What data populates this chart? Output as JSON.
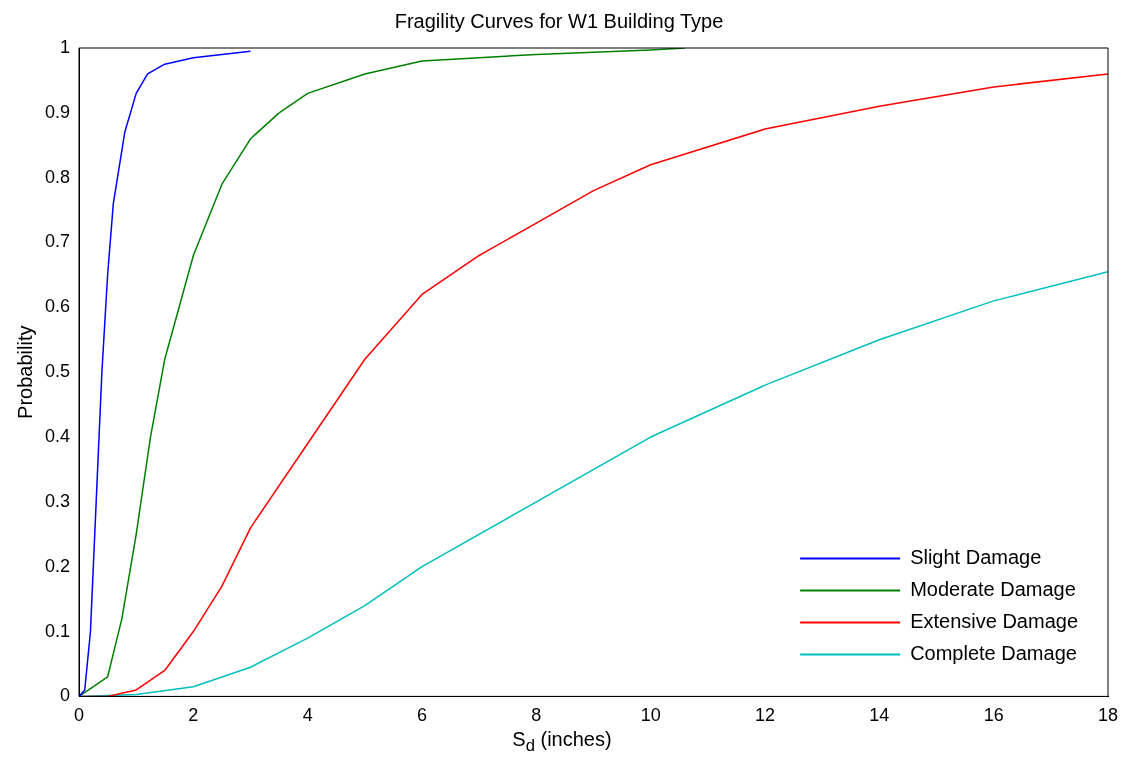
{
  "chart_data": {
    "type": "line",
    "title": "Fragility Curves for W1 Building Type",
    "xlabel": "S$_{d}$ (inches)",
    "ylabel": "Probability",
    "xlim": [
      0,
      18
    ],
    "xticks": [
      0,
      2,
      4,
      6,
      8,
      10,
      12,
      14,
      16,
      18
    ],
    "ylim": [
      0,
      1
    ],
    "yticks": [
      0,
      0.1,
      0.2,
      0.3,
      0.4,
      0.5,
      0.6,
      0.7,
      0.8,
      0.9,
      1
    ],
    "grid": false,
    "legend": "bottom right",
    "marker": "none",
    "line_style": "solid",
    "series": [
      {
        "name": "Slight Damage",
        "color": "#0000ff",
        "x": [
          0,
          0.1,
          0.2,
          0.3,
          0.4,
          0.5,
          0.6,
          0.8,
          1,
          1.2,
          1.5,
          2,
          2.5,
          3
        ],
        "values": [
          0,
          0.01,
          0.1,
          0.3,
          0.5,
          0.65,
          0.76,
          0.87,
          0.93,
          0.96,
          0.975,
          0.985,
          0.99,
          0.995
        ]
      },
      {
        "name": "Moderate Damage",
        "color": "#008000",
        "x": [
          0,
          0.5,
          0.75,
          1,
          1.25,
          1.5,
          2,
          2.5,
          3,
          3.5,
          4,
          5,
          6,
          8,
          10,
          10.6
        ],
        "values": [
          0,
          0.03,
          0.12,
          0.25,
          0.4,
          0.52,
          0.68,
          0.79,
          0.86,
          0.9,
          0.93,
          0.96,
          0.98,
          0.99,
          0.997,
          1
        ]
      },
      {
        "name": "Extensive Damage",
        "color": "#ff0000",
        "x": [
          0,
          0.5,
          1,
          1.5,
          2,
          2.5,
          3,
          4,
          5,
          6,
          7,
          8,
          9,
          10,
          12,
          14,
          16,
          18
        ],
        "values": [
          0,
          0,
          0.01,
          0.04,
          0.1,
          0.17,
          0.26,
          0.39,
          0.52,
          0.62,
          0.68,
          0.73,
          0.78,
          0.82,
          0.875,
          0.91,
          0.94,
          0.96
        ]
      },
      {
        "name": "Complete Damage",
        "color": "#00bfbf",
        "x": [
          0,
          1,
          2,
          3,
          4,
          5,
          6,
          8,
          10,
          12,
          14,
          16,
          18
        ],
        "values": [
          0,
          0.003,
          0.015,
          0.045,
          0.09,
          0.14,
          0.2,
          0.3,
          0.4,
          0.48,
          0.55,
          0.61,
          0.655
        ]
      }
    ]
  }
}
